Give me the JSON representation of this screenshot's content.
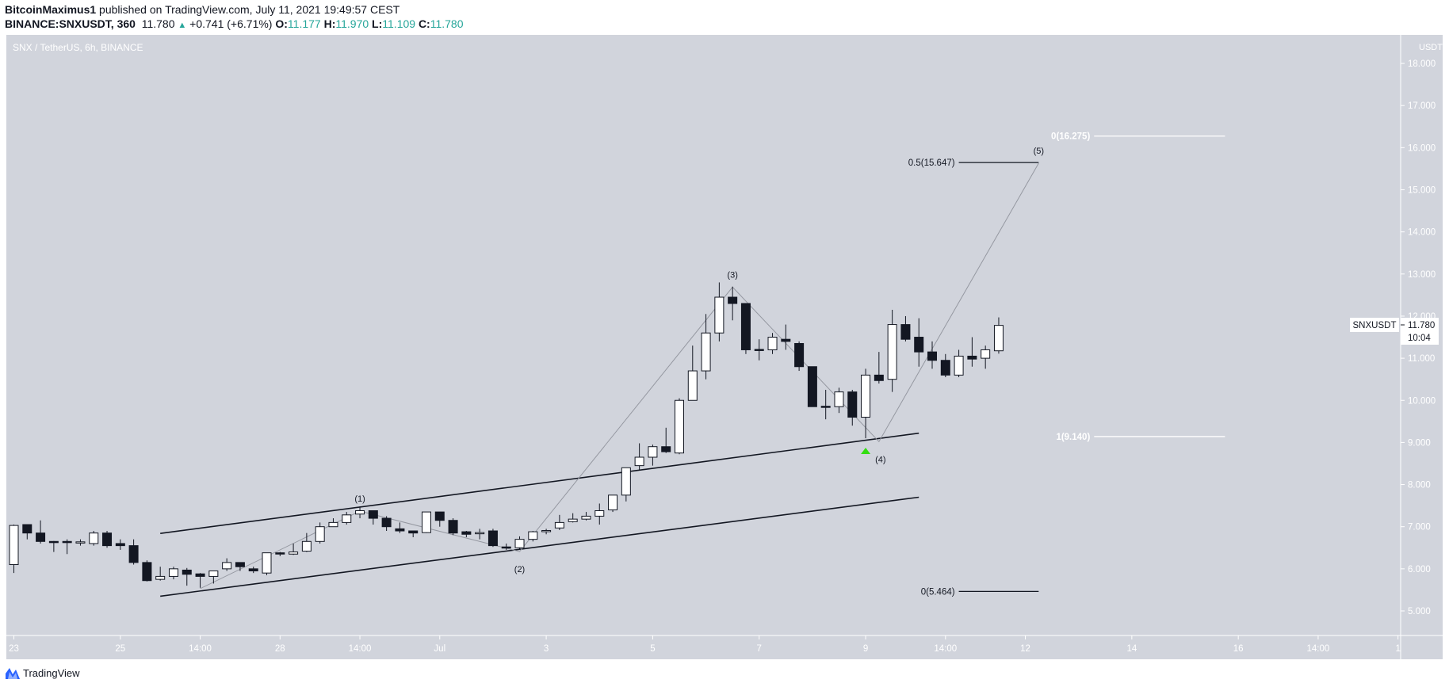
{
  "header": {
    "author": "BitcoinMaximus1",
    "published": "published on TradingView.com, July 11, 2021 19:49:57 CEST",
    "symbol": "BINANCE:SNXUSDT, 360",
    "last": "11.780",
    "change": "+0.741 (+6.71%)",
    "o_label": "O:",
    "o": "11.177",
    "h_label": "H:",
    "h": "11.970",
    "l_label": "L:",
    "l": "11.109",
    "c_label": "C:",
    "c": "11.780"
  },
  "chart_title": "SNX / TetherUS, 6h, BINANCE",
  "colors": {
    "background": "#d1d4dc",
    "up_body": "#ffffff",
    "down_body": "#131722",
    "arrow": "#26a69a",
    "signal": "#33dd11"
  },
  "price_axis": {
    "unit": "USDT",
    "ticks": [
      "5.000",
      "6.000",
      "7.000",
      "8.000",
      "9.000",
      "10.000",
      "11.000",
      "12.000",
      "13.000",
      "14.000",
      "15.000",
      "16.000",
      "17.000",
      "18.000"
    ]
  },
  "price_tag": {
    "symbol": "SNXUSDT",
    "price": "11.780",
    "countdown": "10:04"
  },
  "chart_data": {
    "type": "candlestick",
    "interval": "6h",
    "ylim": [
      4.5,
      18.6
    ],
    "x_ticks": [
      {
        "label": "23",
        "t": "2021-06-23T02:00"
      },
      {
        "label": "25",
        "t": "2021-06-25T02:00"
      },
      {
        "label": "14:00",
        "t": "2021-06-26T14:00"
      },
      {
        "label": "28",
        "t": "2021-06-28T02:00"
      },
      {
        "label": "14:00",
        "t": "2021-06-29T14:00"
      },
      {
        "label": "Jul",
        "t": "2021-07-01T02:00"
      },
      {
        "label": "3",
        "t": "2021-07-03T02:00"
      },
      {
        "label": "5",
        "t": "2021-07-05T02:00"
      },
      {
        "label": "7",
        "t": "2021-07-07T02:00"
      },
      {
        "label": "9",
        "t": "2021-07-09T02:00"
      },
      {
        "label": "14:00",
        "t": "2021-07-10T14:00"
      },
      {
        "label": "12",
        "t": "2021-07-12T02:00"
      },
      {
        "label": "14",
        "t": "2021-07-14T02:00"
      },
      {
        "label": "16",
        "t": "2021-07-16T02:00"
      },
      {
        "label": "14:00",
        "t": "2021-07-17T14:00"
      },
      {
        "label": "1",
        "t": "2021-07-19T02:00"
      }
    ],
    "ohlc": [
      [
        6.1,
        7.05,
        5.9,
        7.03
      ],
      [
        7.05,
        7.05,
        6.7,
        6.85
      ],
      [
        6.85,
        7.15,
        6.6,
        6.65
      ],
      [
        6.65,
        6.66,
        6.4,
        6.64
      ],
      [
        6.65,
        6.7,
        6.35,
        6.64
      ],
      [
        6.63,
        6.7,
        6.55,
        6.64
      ],
      [
        6.6,
        6.9,
        6.55,
        6.85
      ],
      [
        6.85,
        6.9,
        6.5,
        6.55
      ],
      [
        6.6,
        6.7,
        6.45,
        6.55
      ],
      [
        6.55,
        6.7,
        6.1,
        6.15
      ],
      [
        6.15,
        6.2,
        5.7,
        5.72
      ],
      [
        5.75,
        6.05,
        5.72,
        5.82
      ],
      [
        5.82,
        6.05,
        5.75,
        6.0
      ],
      [
        5.97,
        6.02,
        5.6,
        5.87
      ],
      [
        5.88,
        5.9,
        5.55,
        5.82
      ],
      [
        5.82,
        5.95,
        5.65,
        5.95
      ],
      [
        6.0,
        6.25,
        5.95,
        6.15
      ],
      [
        6.15,
        6.15,
        5.95,
        6.05
      ],
      [
        6.0,
        6.05,
        5.9,
        5.95
      ],
      [
        5.9,
        6.38,
        5.85,
        6.38
      ],
      [
        6.38,
        6.4,
        6.3,
        6.35
      ],
      [
        6.35,
        6.6,
        6.33,
        6.4
      ],
      [
        6.42,
        6.85,
        6.4,
        6.65
      ],
      [
        6.65,
        7.1,
        6.6,
        7.0
      ],
      [
        7.0,
        7.2,
        7.0,
        7.1
      ],
      [
        7.1,
        7.35,
        7.05,
        7.28
      ],
      [
        7.3,
        7.48,
        7.2,
        7.38
      ],
      [
        7.38,
        7.38,
        7.05,
        7.2
      ],
      [
        7.2,
        7.25,
        6.9,
        7.0
      ],
      [
        6.95,
        7.1,
        6.85,
        6.9
      ],
      [
        6.9,
        6.9,
        6.75,
        6.85
      ],
      [
        6.86,
        7.35,
        6.85,
        7.35
      ],
      [
        7.35,
        7.35,
        7.0,
        7.15
      ],
      [
        7.15,
        7.2,
        6.8,
        6.85
      ],
      [
        6.88,
        6.9,
        6.75,
        6.82
      ],
      [
        6.85,
        6.95,
        6.7,
        6.86
      ],
      [
        6.9,
        6.95,
        6.52,
        6.55
      ],
      [
        6.52,
        6.6,
        6.45,
        6.5
      ],
      [
        6.5,
        6.77,
        6.47,
        6.7
      ],
      [
        6.7,
        6.9,
        6.65,
        6.88
      ],
      [
        6.9,
        6.95,
        6.82,
        6.91
      ],
      [
        6.97,
        7.28,
        6.92,
        7.1
      ],
      [
        7.12,
        7.32,
        7.1,
        7.18
      ],
      [
        7.18,
        7.35,
        7.15,
        7.25
      ],
      [
        7.25,
        7.55,
        7.05,
        7.38
      ],
      [
        7.4,
        7.75,
        7.35,
        7.75
      ],
      [
        7.75,
        8.4,
        7.6,
        8.4
      ],
      [
        8.45,
        8.98,
        8.35,
        8.65
      ],
      [
        8.65,
        8.95,
        8.45,
        8.9
      ],
      [
        8.9,
        9.35,
        8.75,
        8.78
      ],
      [
        8.75,
        10.05,
        8.72,
        10.0
      ],
      [
        10.0,
        11.3,
        10.0,
        10.7
      ],
      [
        10.7,
        12.05,
        10.5,
        11.6
      ],
      [
        11.6,
        12.8,
        11.4,
        12.45
      ],
      [
        12.45,
        12.7,
        11.9,
        12.3
      ],
      [
        12.3,
        12.3,
        11.1,
        11.2
      ],
      [
        11.21,
        11.45,
        10.95,
        11.2
      ],
      [
        11.2,
        11.6,
        11.1,
        11.5
      ],
      [
        11.45,
        11.8,
        11.2,
        11.4
      ],
      [
        11.35,
        11.4,
        10.7,
        10.8
      ],
      [
        10.8,
        10.8,
        9.85,
        9.85
      ],
      [
        9.86,
        10.25,
        9.55,
        9.85
      ],
      [
        9.85,
        10.3,
        9.7,
        10.2
      ],
      [
        10.2,
        10.25,
        9.4,
        9.6
      ],
      [
        9.6,
        10.75,
        9.1,
        10.6
      ],
      [
        10.6,
        11.15,
        10.4,
        10.47
      ],
      [
        10.5,
        12.15,
        10.2,
        11.8
      ],
      [
        11.8,
        12.0,
        11.4,
        11.45
      ],
      [
        11.5,
        11.95,
        10.8,
        11.15
      ],
      [
        11.15,
        11.4,
        10.75,
        10.95
      ],
      [
        10.95,
        11.1,
        10.55,
        10.6
      ],
      [
        10.6,
        11.2,
        10.55,
        11.05
      ],
      [
        11.05,
        11.5,
        10.8,
        10.98
      ],
      [
        11.0,
        11.3,
        10.75,
        11.2
      ],
      [
        11.177,
        11.97,
        11.109,
        11.78
      ]
    ],
    "first_candle": "2021-06-23T02:00",
    "channel": {
      "upper": [
        [
          "2021-06-25T20:00",
          6.84
        ],
        [
          "2021-07-10T02:00",
          9.22
        ]
      ],
      "lower": [
        [
          "2021-06-25T20:00",
          5.35
        ],
        [
          "2021-07-10T02:00",
          7.7
        ]
      ]
    },
    "wave_path": [
      {
        "label": "",
        "t": "2021-06-26T14:00",
        "p": 5.53
      },
      {
        "label": "(1)",
        "t": "2021-06-29T14:00",
        "p": 7.37,
        "pos": "above"
      },
      {
        "label": "(2)",
        "t": "2021-07-02T14:00",
        "p": 6.41,
        "pos": "below"
      },
      {
        "label": "(3)",
        "t": "2021-07-06T14:00",
        "p": 12.69,
        "pos": "above"
      },
      {
        "label": "(4)",
        "t": "2021-07-09T08:00",
        "p": 9.02,
        "pos": "below"
      },
      {
        "label": "(5)",
        "t": "2021-07-12T08:00",
        "p": 15.63,
        "pos": "above"
      }
    ],
    "fib_levels": [
      {
        "label": "0(16.275)",
        "price": 16.275,
        "color": "#ffffff",
        "from": "2021-07-13T09:00",
        "to": "2021-07-15T20:00"
      },
      {
        "label": "0.5(15.647)",
        "price": 15.647,
        "color": "#131722",
        "from": "2021-07-10T20:00",
        "to": "2021-07-12T08:00"
      },
      {
        "label": "1(9.140)",
        "price": 9.14,
        "color": "#ffffff",
        "from": "2021-07-13T09:00",
        "to": "2021-07-15T20:00"
      },
      {
        "label": "0(5.464)",
        "price": 5.464,
        "color": "#131722",
        "from": "2021-07-10T20:00",
        "to": "2021-07-12T08:00"
      }
    ],
    "signal": {
      "type": "up-arrow",
      "t": "2021-07-09T02:00",
      "p": 8.8
    }
  },
  "footer": {
    "brand": "TradingView"
  }
}
